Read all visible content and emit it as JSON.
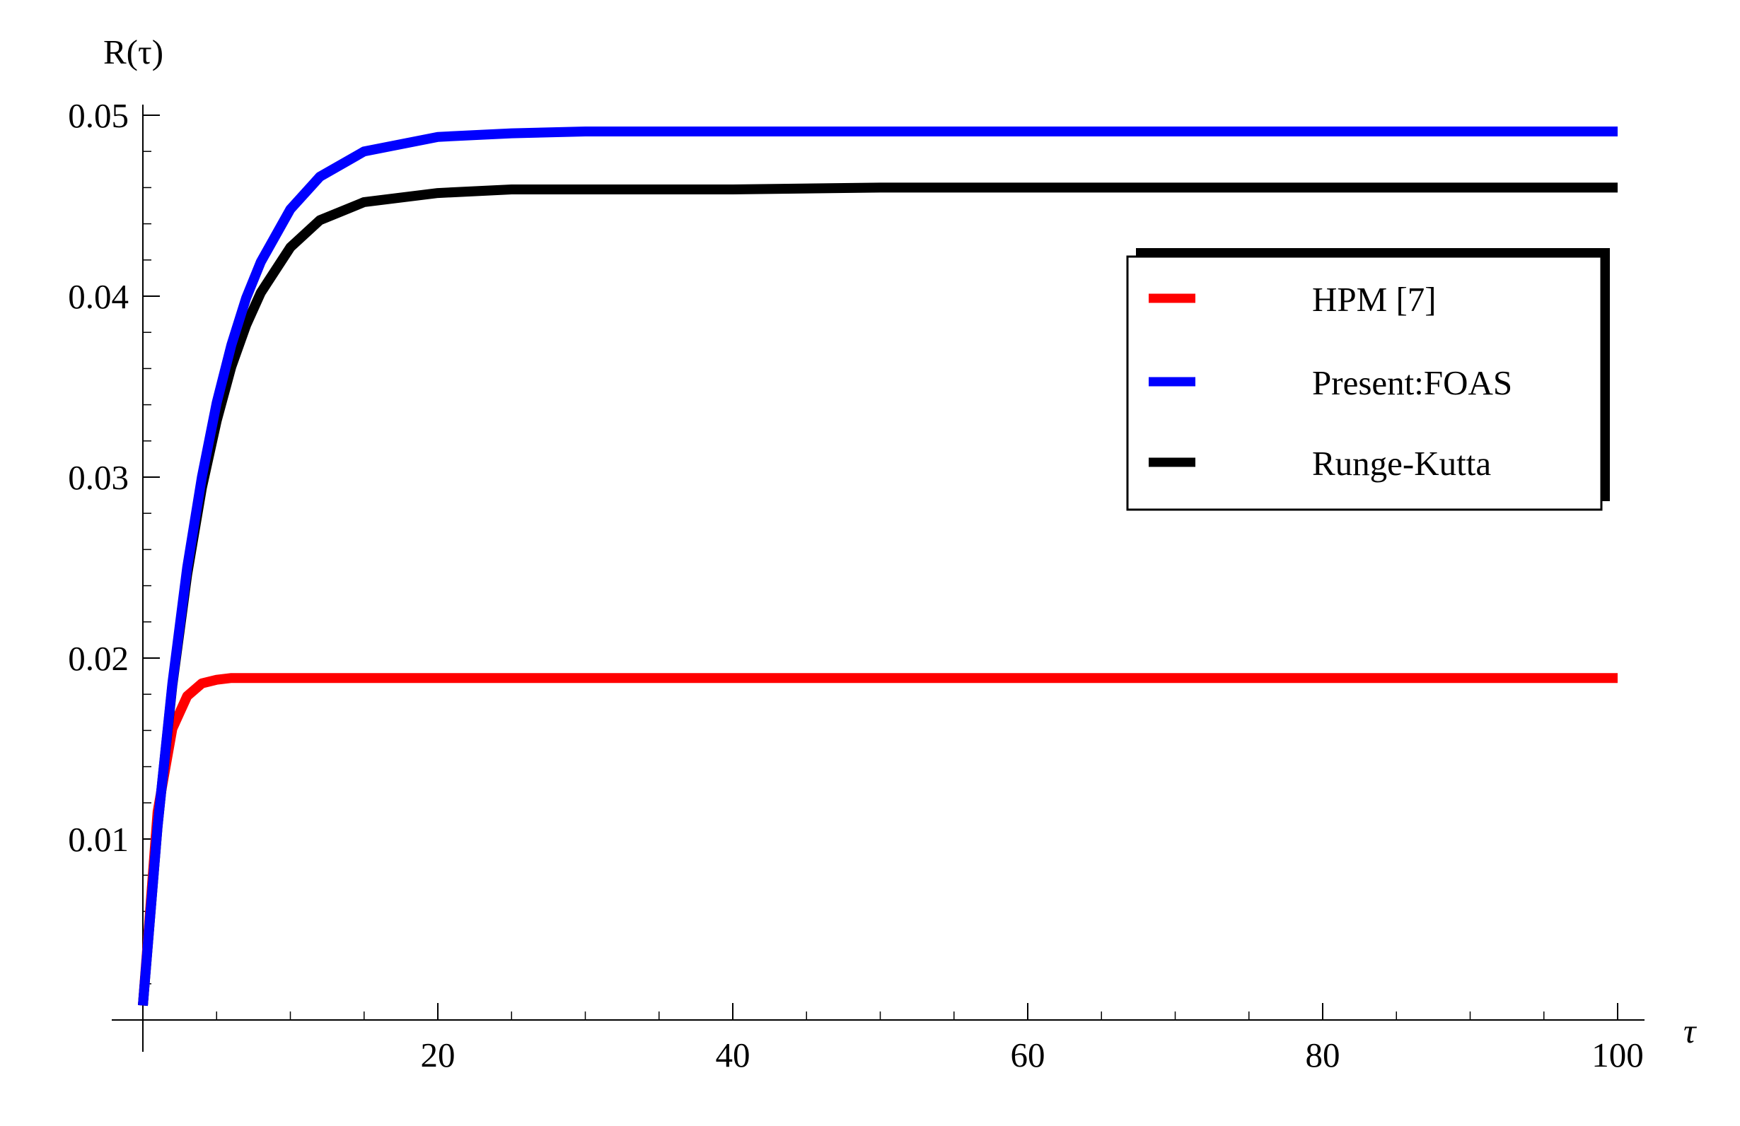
{
  "chart_data": {
    "type": "line",
    "title": "",
    "xlabel": "τ",
    "ylabel": "R(τ)",
    "xlim": [
      0,
      100
    ],
    "ylim": [
      0,
      0.05
    ],
    "x_ticks": [
      20,
      40,
      60,
      80,
      100
    ],
    "x_tick_labels": [
      "20",
      "40",
      "60",
      "80",
      "100"
    ],
    "y_ticks": [
      0.01,
      0.02,
      0.03,
      0.04,
      0.05
    ],
    "y_tick_labels": [
      "0.01",
      "0.02",
      "0.03",
      "0.04",
      "0.05"
    ],
    "grid": false,
    "legend_position": "right",
    "x": [
      0,
      1,
      2,
      3,
      4,
      5,
      6,
      7,
      8,
      10,
      12,
      15,
      20,
      25,
      30,
      40,
      50,
      60,
      70,
      80,
      90,
      100
    ],
    "series": [
      {
        "name": "HPM [7]",
        "color": "#ff0000",
        "values": [
          0.0008,
          0.0115,
          0.0161,
          0.0179,
          0.0186,
          0.0188,
          0.0189,
          0.0189,
          0.0189,
          0.0189,
          0.0189,
          0.0189,
          0.0189,
          0.0189,
          0.0189,
          0.0189,
          0.0189,
          0.0189,
          0.0189,
          0.0189,
          0.0189,
          0.0189
        ]
      },
      {
        "name": "Present:FOAS",
        "color": "#0000ff",
        "values": [
          0.0008,
          0.0107,
          0.0186,
          0.025,
          0.03,
          0.0341,
          0.0373,
          0.0399,
          0.0419,
          0.0448,
          0.0466,
          0.048,
          0.0488,
          0.049,
          0.0491,
          0.0491,
          0.0491,
          0.0491,
          0.0491,
          0.0491,
          0.0491,
          0.0491
        ]
      },
      {
        "name": "Runge-Kutta",
        "color": "#000000",
        "values": [
          0.0008,
          0.0107,
          0.0185,
          0.0246,
          0.0294,
          0.0331,
          0.0361,
          0.0384,
          0.0402,
          0.0427,
          0.0442,
          0.0452,
          0.0457,
          0.0459,
          0.0459,
          0.0459,
          0.046,
          0.046,
          0.046,
          0.046,
          0.046,
          0.046
        ]
      }
    ]
  }
}
